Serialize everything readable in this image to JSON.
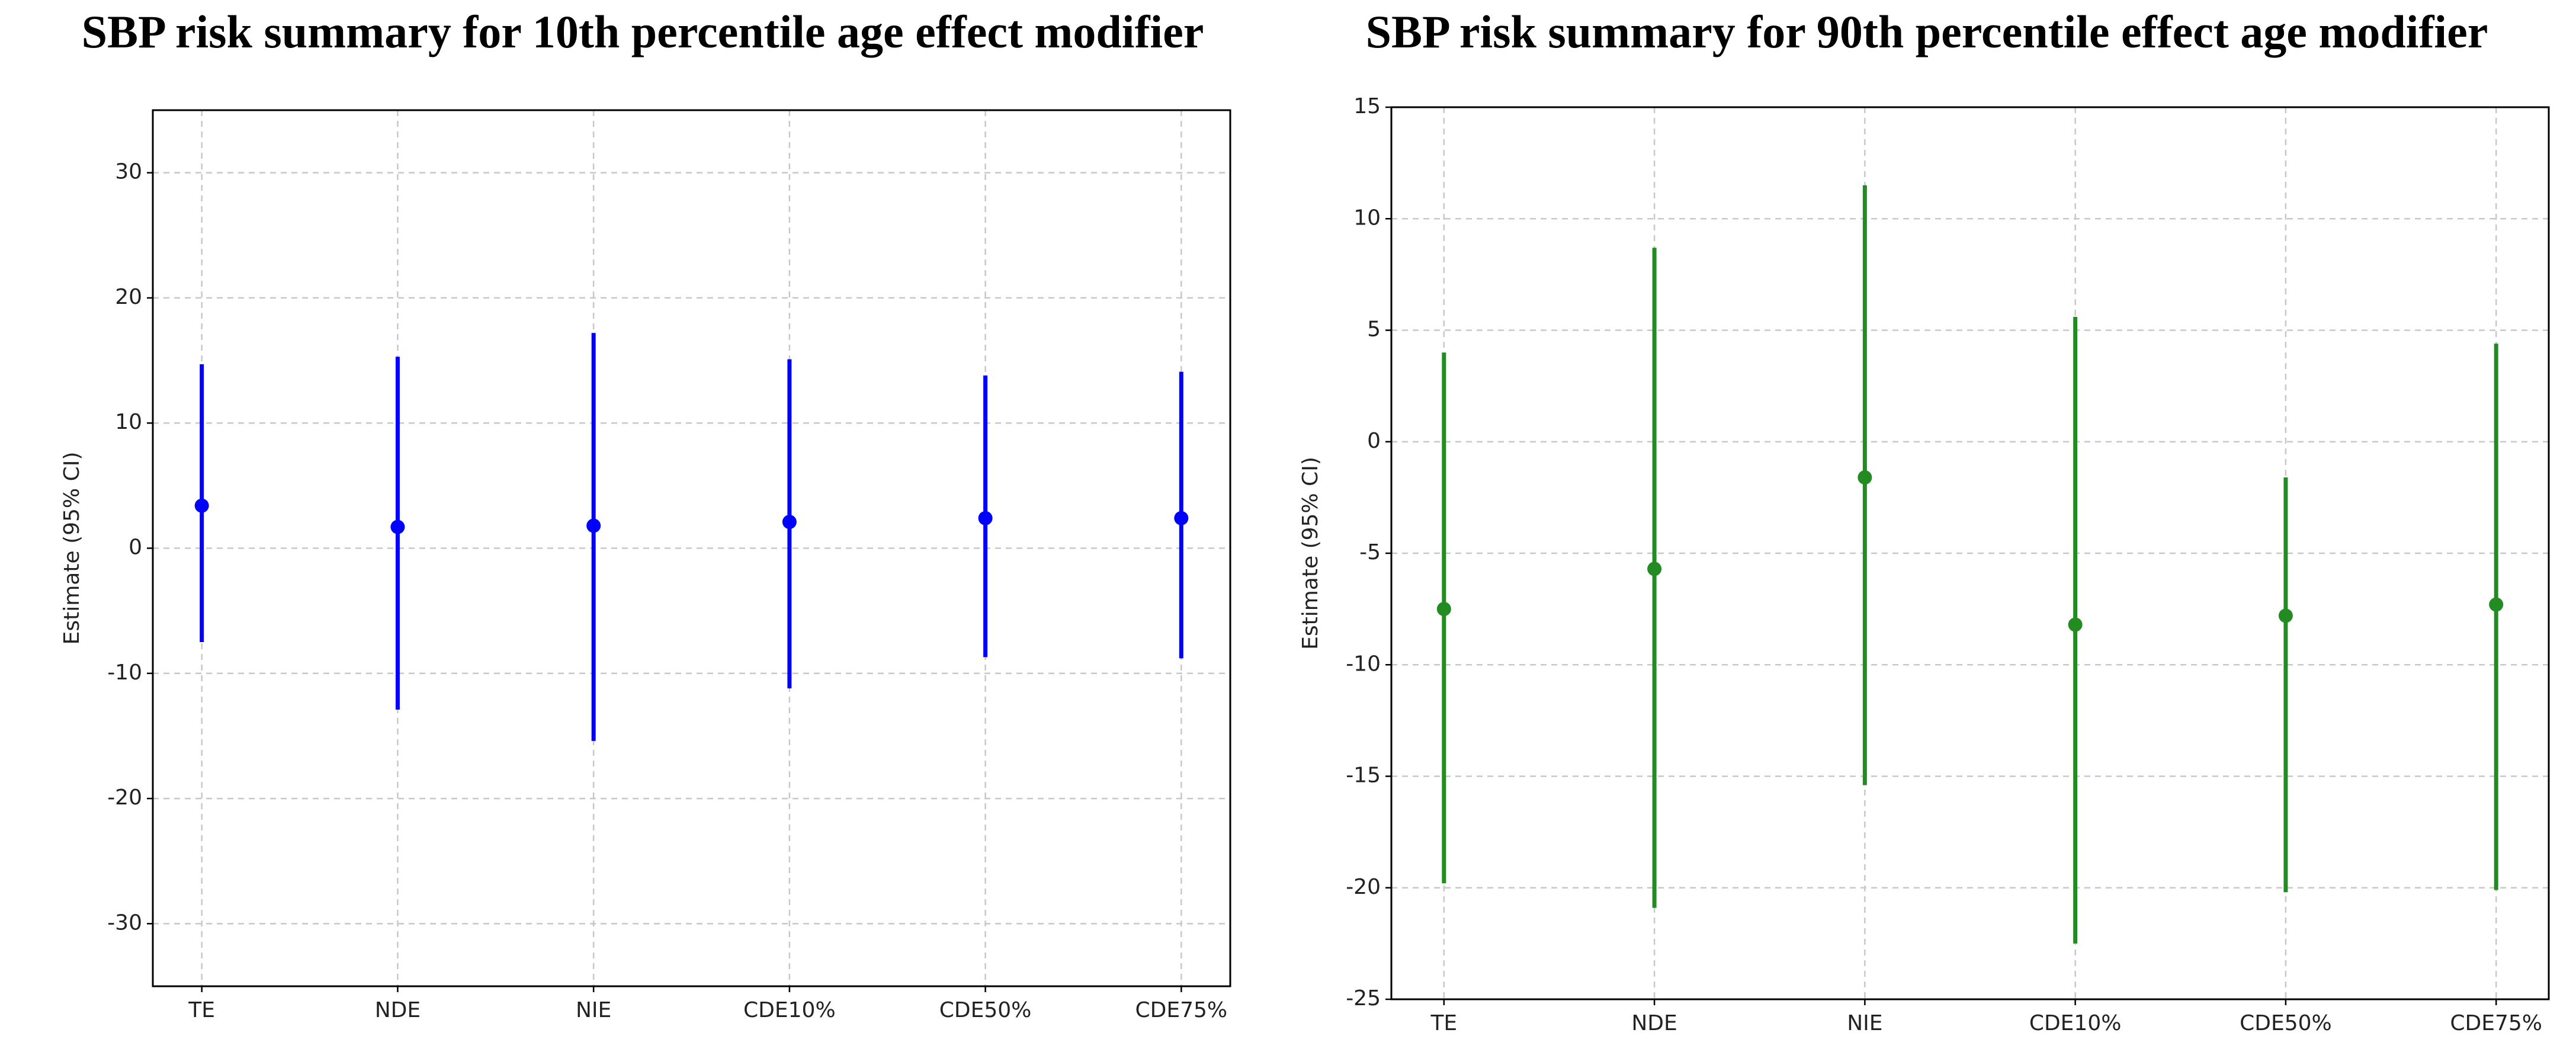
{
  "chart_data": [
    {
      "type": "errorbar",
      "title": "SBP risk summary for 10th percentile age effect modifier",
      "ylabel": "Estimate (95% CI)",
      "categories": [
        "TE",
        "NDE",
        "NIE",
        "CDE10%",
        "CDE50%",
        "CDE75%"
      ],
      "series": [
        {
          "color": "#0000ff",
          "values": [
            3.4,
            1.7,
            1.8,
            2.1,
            2.4,
            2.4
          ],
          "lower": [
            -7.5,
            -12.9,
            -15.4,
            -11.2,
            -8.7,
            -8.8
          ],
          "upper": [
            14.7,
            15.3,
            17.2,
            15.1,
            13.8,
            14.1
          ]
        }
      ],
      "ylim": [
        -35,
        35
      ],
      "yticks": [
        -30,
        -20,
        -10,
        0,
        10,
        20,
        30
      ],
      "grid": true
    },
    {
      "type": "errorbar",
      "title": "SBP risk summary for 90th percentile effect age modifier",
      "ylabel": "Estimate (95% CI)",
      "categories": [
        "TE",
        "NDE",
        "NIE",
        "CDE10%",
        "CDE50%",
        "CDE75%"
      ],
      "series": [
        {
          "color": "#228b22",
          "values": [
            -7.5,
            -5.7,
            -1.6,
            -8.2,
            -7.8,
            -7.3
          ],
          "lower": [
            -19.8,
            -20.9,
            -15.4,
            -22.5,
            -20.2,
            -20.1
          ],
          "upper": [
            4.0,
            8.7,
            11.5,
            5.6,
            -1.6,
            4.4
          ]
        }
      ],
      "ylim": [
        -25,
        15
      ],
      "yticks": [
        -25,
        -20,
        -15,
        -10,
        -5,
        0,
        5,
        10,
        15
      ],
      "grid": true
    }
  ]
}
